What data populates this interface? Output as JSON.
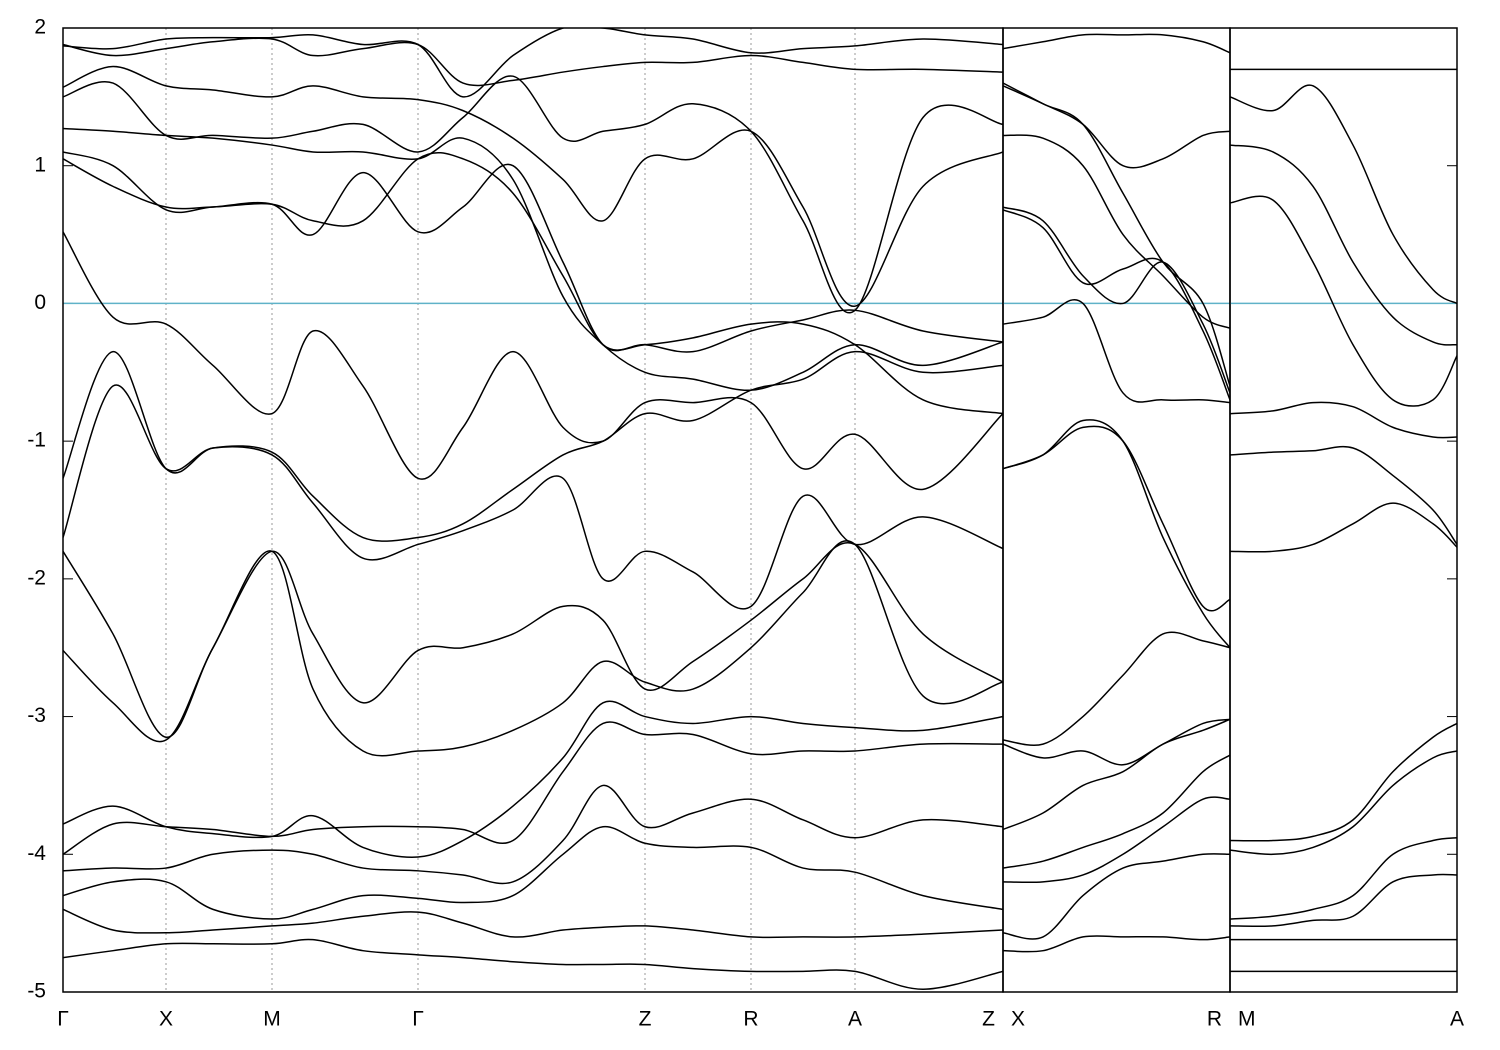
{
  "chart_data": [
    {
      "type": "line",
      "line_color": "#000000",
      "ylim": [
        -5,
        2
      ],
      "yticks": [
        2,
        1,
        0,
        -1,
        -2,
        -3,
        -4,
        -5
      ],
      "xlim": [
        0,
        9.4
      ],
      "xgrid": true,
      "reference_line": {
        "value": 0,
        "color": "#5fb2c8"
      },
      "xticks": [
        {
          "value": 0,
          "label": "Γ"
        },
        {
          "value": 1.03,
          "label": "X"
        },
        {
          "value": 2.09,
          "label": "M"
        },
        {
          "value": 3.55,
          "label": "Γ"
        },
        {
          "value": 5.82,
          "label": "Z"
        },
        {
          "value": 6.88,
          "label": "R"
        },
        {
          "value": 7.92,
          "label": "A"
        },
        {
          "value": 9.4,
          "label": "Z"
        }
      ],
      "x": [
        0,
        0.5,
        1.03,
        1.5,
        2.09,
        2.5,
        3.0,
        3.55,
        4.0,
        4.5,
        5.0,
        5.4,
        5.82,
        6.3,
        6.88,
        7.4,
        7.92,
        8.6,
        9.4
      ],
      "series": [
        {
          "values": [
            0.52,
            -0.1,
            -0.15,
            -0.45,
            -0.8,
            -0.2,
            -0.6,
            -1.27,
            -0.9,
            -0.35,
            -0.9,
            -1.0,
            -0.72,
            -0.72,
            -0.72,
            -1.2,
            -0.95,
            -1.35,
            -0.8
          ]
        },
        {
          "values": [
            -1.27,
            -0.35,
            -1.2,
            -1.05,
            -1.08,
            -1.4,
            -1.7,
            -1.7,
            -1.6,
            -1.35,
            -1.1,
            -1.0,
            -0.8,
            -0.85,
            -0.63,
            -0.55,
            -0.35,
            -0.5,
            -0.45
          ]
        },
        {
          "values": [
            -1.7,
            -0.6,
            -1.2,
            -1.05,
            -1.1,
            -1.45,
            -1.85,
            -1.75,
            -1.65,
            -1.5,
            -1.27,
            -2.0,
            -1.8,
            -1.95,
            -2.2,
            -1.4,
            -1.75,
            -1.55,
            -1.78
          ]
        },
        {
          "values": [
            -1.8,
            -2.4,
            -3.15,
            -2.5,
            -1.8,
            -2.8,
            -3.25,
            -3.25,
            -3.22,
            -3.1,
            -2.9,
            -2.6,
            -2.75,
            -2.8,
            -2.5,
            -2.1,
            -1.75,
            -2.85,
            -2.75
          ]
        },
        {
          "values": [
            -2.52,
            -2.9,
            -3.17,
            -2.5,
            -1.8,
            -2.4,
            -2.9,
            -2.52,
            -2.5,
            -2.4,
            -2.2,
            -2.3,
            -2.8,
            -2.6,
            -2.3,
            -2.0,
            -1.75,
            -2.4,
            -2.75
          ]
        },
        {
          "values": [
            -3.78,
            -3.65,
            -3.8,
            -3.85,
            -3.87,
            -3.72,
            -3.95,
            -4.02,
            -3.9,
            -3.65,
            -3.3,
            -2.9,
            -3.0,
            -3.05,
            -3.0,
            -3.05,
            -3.08,
            -3.1,
            -3.0
          ]
        },
        {
          "values": [
            -4.0,
            -3.78,
            -3.8,
            -3.82,
            -3.87,
            -3.82,
            -3.8,
            -3.8,
            -3.82,
            -3.9,
            -3.4,
            -3.05,
            -3.13,
            -3.13,
            -3.27,
            -3.25,
            -3.25,
            -3.2,
            -3.2
          ]
        },
        {
          "values": [
            -4.12,
            -4.1,
            -4.1,
            -4.0,
            -3.97,
            -4.0,
            -4.1,
            -4.12,
            -4.15,
            -4.2,
            -3.9,
            -3.5,
            -3.8,
            -3.7,
            -3.6,
            -3.75,
            -3.88,
            -3.75,
            -3.8
          ]
        },
        {
          "values": [
            -4.3,
            -4.2,
            -4.2,
            -4.4,
            -4.47,
            -4.4,
            -4.3,
            -4.32,
            -4.35,
            -4.3,
            -4.0,
            -3.8,
            -3.92,
            -3.95,
            -3.95,
            -4.1,
            -4.13,
            -4.3,
            -4.4
          ]
        },
        {
          "values": [
            -4.4,
            -4.55,
            -4.57,
            -4.55,
            -4.52,
            -4.5,
            -4.45,
            -4.42,
            -4.5,
            -4.6,
            -4.55,
            -4.53,
            -4.52,
            -4.55,
            -4.6,
            -4.6,
            -4.6,
            -4.58,
            -4.55
          ]
        },
        {
          "values": [
            -4.75,
            -4.7,
            -4.65,
            -4.65,
            -4.65,
            -4.62,
            -4.7,
            -4.73,
            -4.75,
            -4.78,
            -4.8,
            -4.8,
            -4.8,
            -4.83,
            -4.85,
            -4.85,
            -4.85,
            -4.98,
            -4.85
          ]
        },
        {
          "values": [
            1.05,
            0.85,
            0.7,
            0.7,
            0.72,
            0.6,
            0.6,
            1.05,
            1.05,
            0.8,
            0.2,
            -0.3,
            -0.3,
            -0.25,
            -0.15,
            -0.15,
            -0.3,
            -0.7,
            -0.8
          ]
        },
        {
          "values": [
            1.1,
            1.0,
            0.68,
            0.7,
            0.72,
            0.5,
            0.95,
            0.52,
            0.7,
            1.0,
            0.3,
            -0.3,
            -0.3,
            -0.35,
            -0.2,
            -0.12,
            -0.05,
            -0.2,
            -0.28
          ]
        },
        {
          "values": [
            1.27,
            1.25,
            1.22,
            1.2,
            1.15,
            1.1,
            1.1,
            1.05,
            1.2,
            0.9,
            0.05,
            -0.3,
            -0.5,
            -0.55,
            -0.63,
            -0.5,
            -0.3,
            -0.45,
            -0.28
          ]
        },
        {
          "values": [
            1.57,
            1.72,
            1.58,
            1.55,
            1.5,
            1.58,
            1.5,
            1.48,
            1.4,
            1.2,
            0.9,
            0.6,
            1.05,
            1.05,
            1.25,
            0.7,
            -0.02,
            0.85,
            1.1
          ]
        },
        {
          "values": [
            1.5,
            1.6,
            1.22,
            1.22,
            1.2,
            1.25,
            1.3,
            1.1,
            1.35,
            1.65,
            1.2,
            1.25,
            1.3,
            1.45,
            1.25,
            0.6,
            -0.05,
            1.35,
            1.3
          ]
        },
        {
          "values": [
            1.88,
            1.8,
            1.85,
            1.9,
            1.92,
            1.8,
            1.85,
            1.88,
            1.6,
            1.62,
            1.68,
            1.72,
            1.75,
            1.75,
            1.8,
            1.75,
            1.7,
            1.7,
            1.68
          ]
        },
        {
          "values": [
            1.87,
            1.85,
            1.92,
            1.93,
            1.93,
            1.95,
            1.88,
            1.88,
            1.5,
            1.8,
            2.0,
            2.0,
            1.95,
            1.92,
            1.82,
            1.85,
            1.87,
            1.92,
            1.88
          ]
        }
      ]
    },
    {
      "type": "line",
      "line_color": "#000000",
      "ylim": [
        -5,
        2
      ],
      "xlim": [
        9.4,
        11.67
      ],
      "xgrid": true,
      "reference_line": {
        "value": 0,
        "color": "#5fb2c8"
      },
      "xticks": [
        {
          "value": 9.4,
          "label": "X"
        },
        {
          "value": 11.67,
          "label": "R"
        }
      ],
      "x": [
        9.4,
        9.8,
        10.2,
        10.6,
        11.0,
        11.4,
        11.67
      ],
      "series": [
        {
          "values": [
            1.6,
            1.45,
            1.3,
            0.8,
            0.3,
            0.0,
            -0.6
          ]
        },
        {
          "values": [
            1.22,
            1.2,
            1.0,
            0.5,
            0.2,
            -0.1,
            -0.18
          ]
        },
        {
          "values": [
            0.7,
            0.6,
            0.2,
            0.0,
            0.3,
            -0.15,
            -0.65
          ]
        },
        {
          "values": [
            0.68,
            0.55,
            0.15,
            0.25,
            0.3,
            -0.2,
            -0.7
          ]
        },
        {
          "values": [
            -0.15,
            -0.1,
            0.0,
            -0.65,
            -0.7,
            -0.7,
            -0.72
          ]
        },
        {
          "values": [
            -1.2,
            -1.1,
            -0.9,
            -1.0,
            -1.6,
            -2.2,
            -2.15
          ]
        },
        {
          "values": [
            -1.2,
            -1.1,
            -0.85,
            -1.0,
            -1.7,
            -2.25,
            -2.5
          ]
        },
        {
          "values": [
            -3.17,
            -3.2,
            -3.0,
            -2.7,
            -2.4,
            -2.45,
            -2.5
          ]
        },
        {
          "values": [
            -3.2,
            -3.3,
            -3.25,
            -3.35,
            -3.2,
            -3.05,
            -3.02
          ]
        },
        {
          "values": [
            -3.82,
            -3.7,
            -3.5,
            -3.4,
            -3.2,
            -3.1,
            -3.02
          ]
        },
        {
          "values": [
            -4.1,
            -4.05,
            -3.95,
            -3.85,
            -3.7,
            -3.4,
            -3.28
          ]
        },
        {
          "values": [
            -4.2,
            -4.2,
            -4.15,
            -4.0,
            -3.8,
            -3.6,
            -3.6
          ]
        },
        {
          "values": [
            -4.57,
            -4.6,
            -4.3,
            -4.1,
            -4.05,
            -4.0,
            -4.0
          ]
        },
        {
          "values": [
            -4.7,
            -4.7,
            -4.6,
            -4.6,
            -4.6,
            -4.62,
            -4.6
          ]
        },
        {
          "values": [
            1.85,
            1.9,
            1.95,
            1.95,
            1.95,
            1.9,
            1.82
          ]
        },
        {
          "values": [
            1.58,
            1.45,
            1.3,
            1.0,
            1.05,
            1.22,
            1.25
          ]
        }
      ]
    },
    {
      "type": "line",
      "line_color": "#000000",
      "ylim": [
        -5,
        2
      ],
      "xlim": [
        11.67,
        13.94
      ],
      "xgrid": true,
      "reference_line": {
        "value": 0,
        "color": "#5fb2c8"
      },
      "xticks": [
        {
          "value": 11.67,
          "label": "M"
        },
        {
          "value": 13.94,
          "label": "A"
        }
      ],
      "x": [
        11.67,
        12.1,
        12.5,
        12.9,
        13.3,
        13.7,
        13.94
      ],
      "series": [
        {
          "values": [
            1.5,
            1.4,
            1.58,
            1.15,
            0.5,
            0.1,
            0.0
          ]
        },
        {
          "values": [
            1.15,
            1.1,
            0.85,
            0.3,
            -0.1,
            -0.28,
            -0.3
          ]
        },
        {
          "values": [
            0.73,
            0.75,
            0.3,
            -0.3,
            -0.7,
            -0.7,
            -0.38
          ]
        },
        {
          "values": [
            -0.8,
            -0.78,
            -0.72,
            -0.75,
            -0.9,
            -0.97,
            -0.97
          ]
        },
        {
          "values": [
            -1.1,
            -1.08,
            -1.07,
            -1.05,
            -1.25,
            -1.5,
            -1.75
          ]
        },
        {
          "values": [
            -1.8,
            -1.8,
            -1.75,
            -1.6,
            -1.45,
            -1.6,
            -1.77
          ]
        },
        {
          "values": [
            -3.9,
            -3.9,
            -3.87,
            -3.75,
            -3.4,
            -3.15,
            -3.05
          ]
        },
        {
          "values": [
            -3.97,
            -4.0,
            -3.95,
            -3.8,
            -3.5,
            -3.3,
            -3.25
          ]
        },
        {
          "values": [
            -4.47,
            -4.45,
            -4.4,
            -4.3,
            -4.0,
            -3.9,
            -3.88
          ]
        },
        {
          "values": [
            -4.52,
            -4.52,
            -4.48,
            -4.45,
            -4.2,
            -4.15,
            -4.15
          ]
        },
        {
          "values": [
            -4.62,
            -4.62,
            -4.62,
            -4.62,
            -4.62,
            -4.62,
            -4.62
          ]
        },
        {
          "values": [
            1.7,
            1.7,
            1.7,
            1.7,
            1.7,
            1.7,
            1.7
          ]
        },
        {
          "values": [
            -4.85,
            -4.85,
            -4.85,
            -4.85,
            -4.85,
            -4.85,
            -4.85
          ]
        }
      ]
    }
  ]
}
